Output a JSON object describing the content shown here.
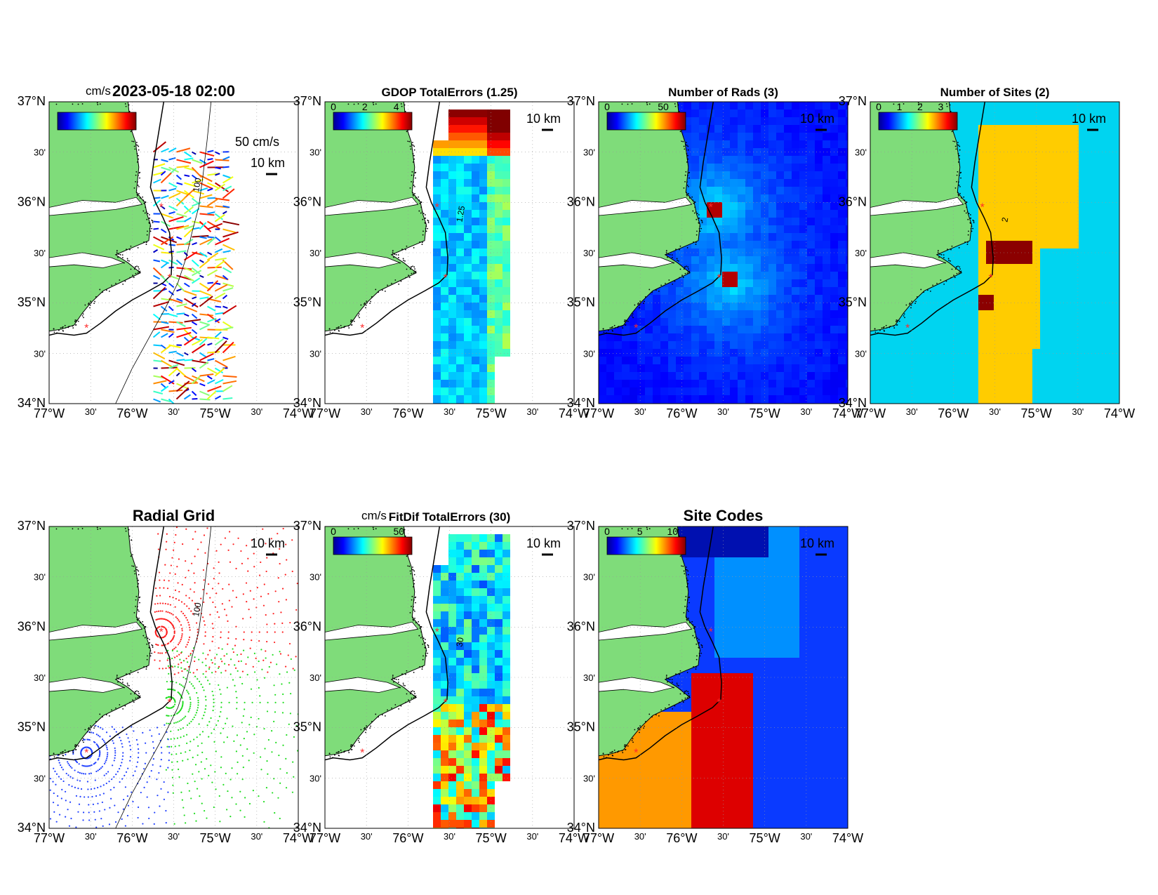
{
  "colormap_stops": [
    "#00008f",
    "#0000ff",
    "#0080ff",
    "#00ffff",
    "#80ff80",
    "#ffff00",
    "#ff8000",
    "#ff0000",
    "#800000"
  ],
  "colors": {
    "land": "#7fdc7a",
    "coast": "#000000",
    "site_marker": "#ff2a2a",
    "grid_line": "#c8c8c8"
  },
  "x_ticks": {
    "major": [
      "77°W",
      "76°W",
      "75°W",
      "74°W"
    ],
    "minor": "30'"
  },
  "y_ticks": {
    "major": [
      "34°N",
      "35°N",
      "36°N",
      "37°N"
    ],
    "minor": "30'"
  },
  "scale_label": "10 km",
  "chart_data": [
    {
      "id": "p1",
      "type": "scatter",
      "title": "2023-05-18 02:00",
      "colorbar": {
        "unit": "cm/s",
        "ticks": []
      },
      "legend_label": "50 cm/s",
      "contour_label": "100",
      "xlim": [
        -77,
        -74
      ],
      "ylim": [
        34,
        37
      ],
      "field": "vectors"
    },
    {
      "id": "p2",
      "type": "heatmap",
      "title": "GDOP TotalErrors (1.25)",
      "colorbar": {
        "unit": "",
        "ticks": [
          "0",
          "2",
          "4"
        ]
      },
      "contour_label": "1.25",
      "xlim": [
        -77,
        -74
      ],
      "ylim": [
        34,
        37
      ],
      "field": "gdop"
    },
    {
      "id": "p3",
      "type": "heatmap",
      "title": "Number of Rads (3)",
      "colorbar": {
        "unit": "",
        "ticks": [
          "0",
          "50"
        ]
      },
      "contour_label": "",
      "xlim": [
        -77,
        -74
      ],
      "ylim": [
        34,
        37
      ],
      "field": "rads"
    },
    {
      "id": "p4",
      "type": "heatmap",
      "title": "Number of Sites (2)",
      "colorbar": {
        "unit": "",
        "ticks": [
          "0",
          "1",
          "2",
          "3"
        ]
      },
      "contour_label": "2",
      "xlim": [
        -77,
        -74
      ],
      "ylim": [
        34,
        37
      ],
      "field": "sites"
    },
    {
      "id": "p5",
      "type": "scatter",
      "title": "Radial Grid",
      "colorbar": null,
      "contour_label": "100",
      "xlim": [
        -77,
        -74
      ],
      "ylim": [
        34,
        37
      ],
      "field": "radial"
    },
    {
      "id": "p6",
      "type": "heatmap",
      "title": "FitDif TotalErrors (30)",
      "colorbar": {
        "unit": "cm/s",
        "ticks": [
          "0",
          "50"
        ]
      },
      "contour_label": "30",
      "xlim": [
        -77,
        -74
      ],
      "ylim": [
        34,
        37
      ],
      "field": "fitdif"
    },
    {
      "id": "p7",
      "type": "heatmap",
      "title": "Site Codes",
      "colorbar": {
        "unit": "",
        "ticks": [
          "0",
          "5",
          "10"
        ]
      },
      "contour_label": "",
      "xlim": [
        -77,
        -74
      ],
      "ylim": [
        34,
        37
      ],
      "field": "codes"
    }
  ],
  "sites": [
    {
      "lon": -75.65,
      "lat": 35.95
    },
    {
      "lon": -75.55,
      "lat": 35.25
    },
    {
      "lon": -76.55,
      "lat": 34.75
    }
  ]
}
